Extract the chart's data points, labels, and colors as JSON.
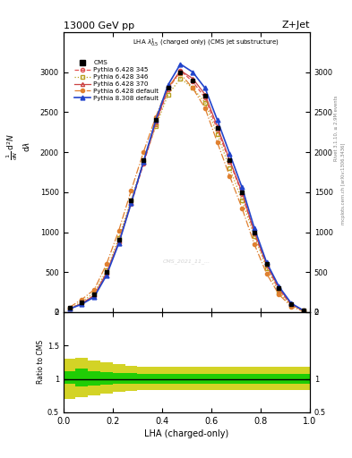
{
  "title_top": "13000 GeV pp",
  "title_right": "Z+Jet",
  "plot_label": "LHA $\\lambda^{1}_{0.5}$ (charged only) (CMS jet substructure)",
  "xlabel": "LHA (charged-only)",
  "right_label_top": "Rivet 3.1.10, ≥ 2.9M events",
  "right_label_bot": "mcplots.cern.ch [arXiv:1306.3436]",
  "watermark": "CMS_2021_11_...",
  "cms_error_band_inner": "#00cc00",
  "cms_error_band_outer": "#cccc00",
  "xbins": [
    0.0,
    0.05,
    0.1,
    0.15,
    0.2,
    0.25,
    0.3,
    0.35,
    0.4,
    0.45,
    0.5,
    0.55,
    0.6,
    0.65,
    0.7,
    0.75,
    0.8,
    0.85,
    0.9,
    0.95,
    1.0
  ],
  "cms_data": [
    0.05,
    0.12,
    0.22,
    0.5,
    0.9,
    1.4,
    1.9,
    2.4,
    2.8,
    3.0,
    2.9,
    2.7,
    2.3,
    1.9,
    1.5,
    1.0,
    0.6,
    0.3,
    0.1,
    0.02
  ],
  "py6_345": [
    0.04,
    0.11,
    0.2,
    0.48,
    0.87,
    1.35,
    1.85,
    2.35,
    2.78,
    3.02,
    2.88,
    2.68,
    2.28,
    1.88,
    1.48,
    0.98,
    0.58,
    0.28,
    0.09,
    0.02
  ],
  "py6_346": [
    0.04,
    0.13,
    0.24,
    0.52,
    0.93,
    1.4,
    1.88,
    2.32,
    2.72,
    2.92,
    2.8,
    2.62,
    2.22,
    1.8,
    1.4,
    0.95,
    0.55,
    0.25,
    0.08,
    0.02
  ],
  "py6_370": [
    0.04,
    0.11,
    0.21,
    0.49,
    0.88,
    1.37,
    1.87,
    2.38,
    2.8,
    3.02,
    2.92,
    2.72,
    2.32,
    1.9,
    1.5,
    1.0,
    0.6,
    0.3,
    0.1,
    0.02
  ],
  "py6_def": [
    0.06,
    0.16,
    0.28,
    0.6,
    1.02,
    1.52,
    2.0,
    2.44,
    2.82,
    2.98,
    2.8,
    2.55,
    2.12,
    1.7,
    1.3,
    0.85,
    0.48,
    0.22,
    0.07,
    0.01
  ],
  "py8_def": [
    0.04,
    0.1,
    0.19,
    0.46,
    0.86,
    1.36,
    1.88,
    2.4,
    2.84,
    3.1,
    3.0,
    2.8,
    2.4,
    1.98,
    1.56,
    1.05,
    0.62,
    0.32,
    0.11,
    0.02
  ],
  "ratio_inner_lo": [
    0.92,
    0.88,
    0.9,
    0.91,
    0.92,
    0.92,
    0.93,
    0.93,
    0.93,
    0.93,
    0.93,
    0.93,
    0.93,
    0.93,
    0.93,
    0.93,
    0.93,
    0.93,
    0.93,
    0.93
  ],
  "ratio_inner_hi": [
    1.12,
    1.15,
    1.12,
    1.1,
    1.09,
    1.09,
    1.08,
    1.08,
    1.08,
    1.08,
    1.08,
    1.08,
    1.08,
    1.08,
    1.08,
    1.08,
    1.08,
    1.08,
    1.08,
    1.08
  ],
  "ratio_outer_lo": [
    0.7,
    0.72,
    0.75,
    0.78,
    0.8,
    0.82,
    0.83,
    0.83,
    0.83,
    0.83,
    0.83,
    0.83,
    0.83,
    0.83,
    0.83,
    0.83,
    0.83,
    0.83,
    0.83,
    0.83
  ],
  "ratio_outer_hi": [
    1.3,
    1.32,
    1.28,
    1.25,
    1.22,
    1.2,
    1.18,
    1.18,
    1.18,
    1.18,
    1.18,
    1.18,
    1.18,
    1.18,
    1.18,
    1.18,
    1.18,
    1.18,
    1.18,
    1.18
  ],
  "color_py6_345": "#e05050",
  "color_py6_346": "#b8a020",
  "color_py6_370": "#cc4444",
  "color_py6_def": "#e08030",
  "color_py8_def": "#2244cc",
  "scale": 1000.0,
  "ylim_main": [
    0,
    3.5
  ],
  "ylim_ratio": [
    0.5,
    2.0
  ],
  "xlim": [
    0.0,
    1.0
  ],
  "figsize": [
    3.93,
    5.12
  ],
  "dpi": 100
}
